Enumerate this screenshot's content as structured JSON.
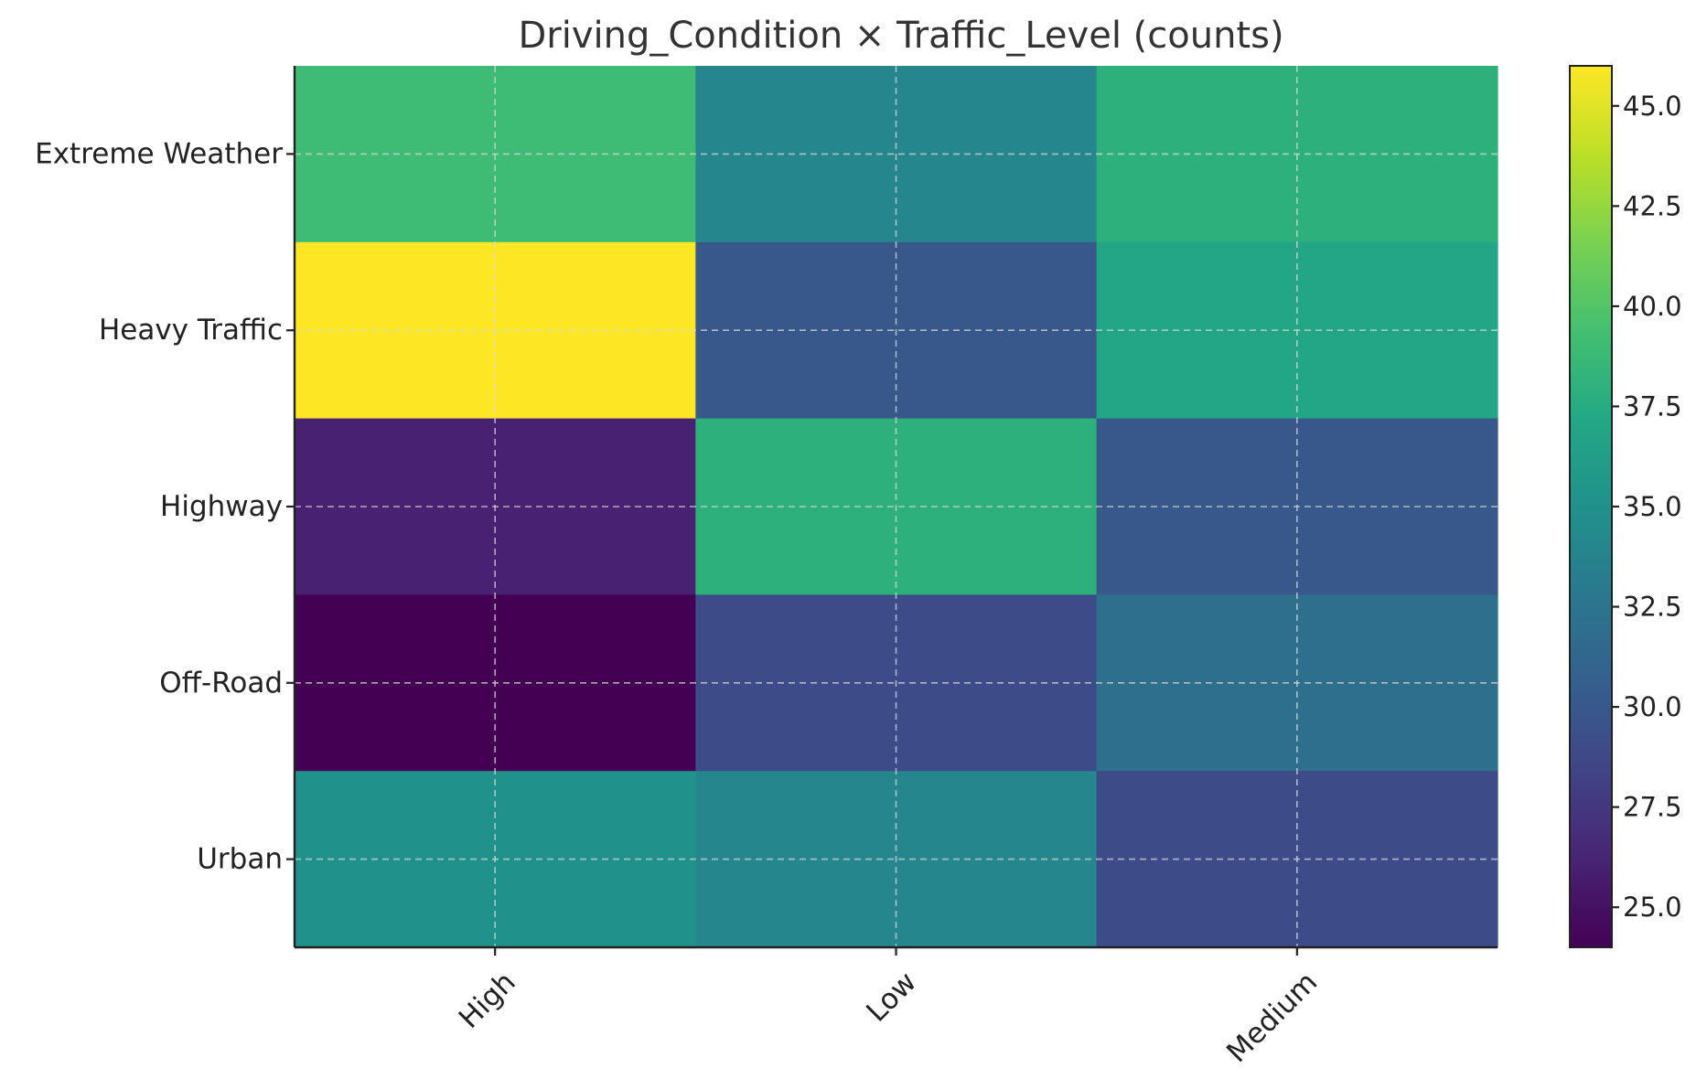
{
  "chart_data": {
    "type": "heatmap",
    "title": "Driving_Condition × Traffic_Level (counts)",
    "xlabel": "",
    "ylabel": "",
    "x_categories": [
      "High",
      "Low",
      "Medium"
    ],
    "y_categories": [
      "Extreme Weather",
      "Heavy Traffic",
      "Highway",
      "Off-Road",
      "Urban"
    ],
    "values": [
      [
        39,
        34,
        38
      ],
      [
        46,
        30,
        37
      ],
      [
        26,
        38,
        30
      ],
      [
        24,
        29,
        32
      ],
      [
        35,
        34,
        29
      ]
    ],
    "colorbar": {
      "range": [
        24,
        46
      ],
      "ticks": [
        "25.0",
        "27.5",
        "30.0",
        "32.5",
        "35.0",
        "37.5",
        "40.0",
        "42.5",
        "45.0"
      ],
      "colormap": "viridis"
    },
    "grid": true
  }
}
